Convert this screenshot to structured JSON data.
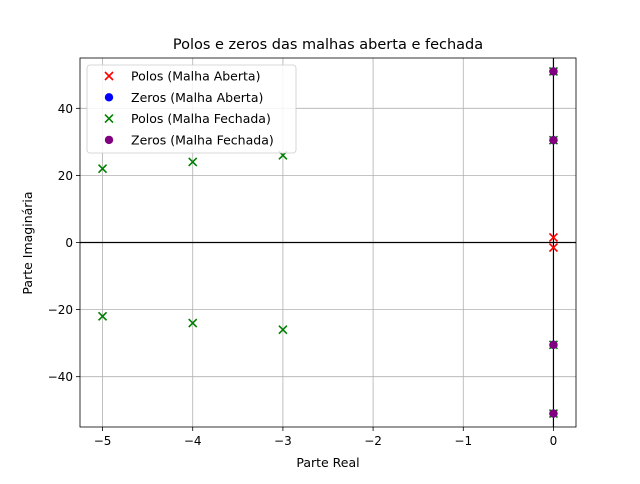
{
  "chart_data": {
    "type": "scatter",
    "title": "Polos e zeros das malhas aberta e fechada",
    "xlabel": "Parte Real",
    "ylabel": "Parte Imaginária",
    "xlim": [
      -5.25,
      0.25
    ],
    "ylim": [
      -55,
      55
    ],
    "x_ticks": [
      -5,
      -4,
      -3,
      -2,
      -1,
      0
    ],
    "x_tick_labels": [
      "−5",
      "−4",
      "−3",
      "−2",
      "−1",
      "0"
    ],
    "y_ticks": [
      -40,
      -20,
      0,
      20,
      40
    ],
    "y_tick_labels": [
      "−40",
      "−20",
      "0",
      "20",
      "40"
    ],
    "grid": true,
    "legend_position": "top-left",
    "series": [
      {
        "name": "Polos (Malha Aberta)",
        "marker": "x",
        "color": "#ff0000",
        "points": [
          [
            0,
            1.5
          ],
          [
            0,
            -1.5
          ]
        ]
      },
      {
        "name": "Zeros (Malha Aberta)",
        "marker": "o",
        "color": "#0000ff",
        "points": [
          [
            0,
            51
          ],
          [
            0,
            30.5
          ],
          [
            0,
            -30.5
          ],
          [
            0,
            -51
          ]
        ]
      },
      {
        "name": "Polos (Malha Fechada)",
        "marker": "x",
        "color": "#008000",
        "points": [
          [
            -5,
            22
          ],
          [
            -4,
            24
          ],
          [
            -3,
            26
          ],
          [
            -5,
            -22
          ],
          [
            -4,
            -24
          ],
          [
            -3,
            -26
          ],
          [
            0,
            51
          ],
          [
            0,
            30.5
          ],
          [
            0,
            -30.5
          ],
          [
            0,
            -51
          ]
        ]
      },
      {
        "name": "Zeros (Malha Fechada)",
        "marker": "o",
        "color": "#800080",
        "points": [
          [
            0,
            51
          ],
          [
            0,
            30.5
          ],
          [
            0,
            -30.5
          ],
          [
            0,
            -51
          ]
        ]
      }
    ]
  }
}
